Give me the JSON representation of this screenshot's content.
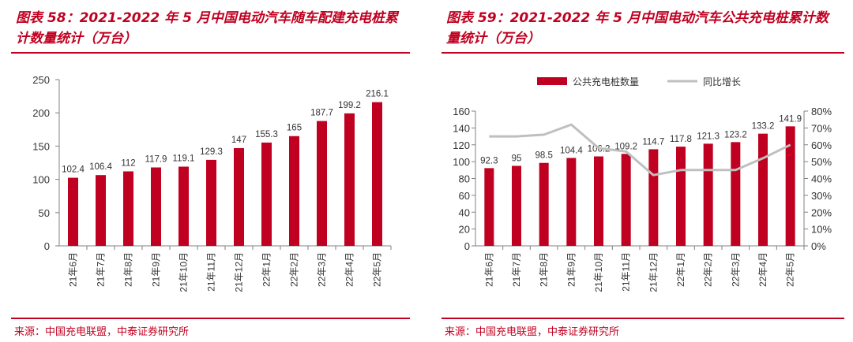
{
  "left": {
    "title": "图表 58：2021-2022 年 5 月中国电动汽车随车配建充电桩累计数量统计（万台）",
    "source": "来源：中国充电联盟，中泰证券研究所",
    "chart_data": {
      "type": "bar",
      "title": "2021-2022年5月中国电动汽车随车配建充电桩累计数量统计（万台）",
      "categories": [
        "21年6月",
        "21年7月",
        "21年8月",
        "21年9月",
        "21年10月",
        "21年11月",
        "21年12月",
        "22年1月",
        "22年2月",
        "22年3月",
        "22年4月",
        "22年5月"
      ],
      "values": [
        102.4,
        106.4,
        112,
        117.9,
        119.1,
        129.3,
        147,
        155.3,
        165,
        187.7,
        199.2,
        216.1
      ],
      "value_labels": [
        "102.4",
        "106.4",
        "112",
        "117.9",
        "119.1",
        "129.3",
        "147",
        "155.3",
        "165",
        "187.7",
        "199.2",
        "216.1"
      ],
      "ylim": [
        0,
        250
      ],
      "yticks": [
        "0",
        "50",
        "100",
        "150",
        "200",
        "250"
      ],
      "bar_color": "#c00020"
    }
  },
  "right": {
    "title": "图表 59：2021-2022 年 5 月中国电动汽车公共充电桩累计数量统计（万台）",
    "source": "来源：中国充电联盟，中泰证券研究所",
    "chart_data": {
      "type": "bar",
      "title": "2021-2022年5月中国电动汽车公共充电桩累计数量统计（万台）",
      "categories": [
        "21年6月",
        "21年7月",
        "21年8月",
        "21年9月",
        "21年10月",
        "21年11月",
        "21年12月",
        "22年1月",
        "22年2月",
        "22年3月",
        "22年4月",
        "22年5月"
      ],
      "series": [
        {
          "name": "公共充电桩数量",
          "type": "bar",
          "axis": "left",
          "values": [
            92.3,
            95,
            98.5,
            104.4,
            106.2,
            109.2,
            114.7,
            117.8,
            121.3,
            123.2,
            133.2,
            141.9
          ],
          "value_labels": [
            "92.3",
            "95",
            "98.5",
            "104.4",
            "106.2",
            "109.2",
            "114.7",
            "117.8",
            "121.3",
            "123.2",
            "133.2",
            "141.9"
          ],
          "color": "#c00020"
        },
        {
          "name": "同比增长",
          "type": "line",
          "axis": "right",
          "values": [
            0.65,
            0.65,
            0.66,
            0.72,
            0.58,
            0.56,
            0.42,
            0.45,
            0.45,
            0.45,
            0.52,
            0.6
          ],
          "color": "#bfbfbf"
        }
      ],
      "ylim": [
        0,
        160
      ],
      "yticks": [
        "0",
        "20",
        "40",
        "60",
        "80",
        "100",
        "120",
        "140",
        "160"
      ],
      "y2lim": [
        0,
        0.8
      ],
      "y2ticks": [
        "0%",
        "10%",
        "20%",
        "30%",
        "40%",
        "50%",
        "60%",
        "70%",
        "80%"
      ],
      "legend": "top"
    }
  }
}
